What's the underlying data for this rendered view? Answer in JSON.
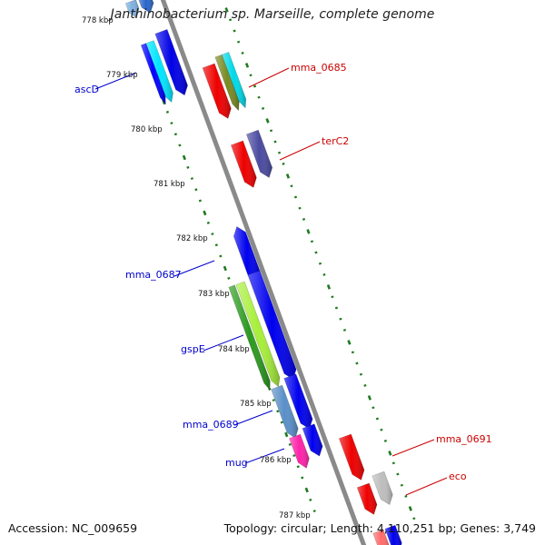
{
  "title": "Janthinobacterium sp. Marseille, complete genome",
  "footer": {
    "accession": "Accession: NC_009659",
    "summary": "Topology: circular; Length: 4,110,251 bp; Genes: 3,749"
  },
  "colors": {
    "backbone": "#8c8c8c",
    "tick": "#1e7a1e",
    "forward_label": "#0000cc",
    "reverse_label": "#cc0000"
  },
  "kbp_ticks": [
    "778 kbp",
    "779 kbp",
    "780 kbp",
    "781 kbp",
    "782 kbp",
    "783 kbp",
    "784 kbp",
    "785 kbp",
    "786 kbp",
    "787 kbp"
  ],
  "gene_labels": {
    "forward": [
      "ascD",
      "mma_0687",
      "gspE",
      "mma_0689",
      "mug"
    ],
    "reverse": [
      "mma_0685",
      "terC2",
      "mma_0691",
      "eco"
    ]
  }
}
